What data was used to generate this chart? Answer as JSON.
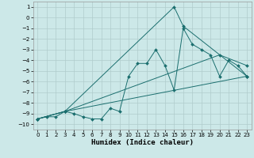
{
  "xlabel": "Humidex (Indice chaleur)",
  "background_color": "#cce8e8",
  "grid_color": "#b0cccc",
  "line_color": "#1a6e6e",
  "xlim": [
    -0.5,
    23.5
  ],
  "ylim": [
    -10.5,
    1.5
  ],
  "xticks": [
    0,
    1,
    2,
    3,
    4,
    5,
    6,
    7,
    8,
    9,
    10,
    11,
    12,
    13,
    14,
    15,
    16,
    17,
    18,
    19,
    20,
    21,
    22,
    23
  ],
  "yticks": [
    1,
    0,
    -1,
    -2,
    -3,
    -4,
    -5,
    -6,
    -7,
    -8,
    -9,
    -10
  ],
  "series": [
    {
      "x": [
        0,
        1,
        2,
        3,
        4,
        5,
        6,
        7,
        8,
        9,
        10,
        11,
        12,
        13,
        14,
        15,
        16,
        17,
        18,
        19,
        20,
        21,
        22,
        23
      ],
      "y": [
        -9.5,
        -9.3,
        -9.3,
        -8.8,
        -9.0,
        -9.3,
        -9.5,
        -9.5,
        -8.5,
        -8.8,
        -5.5,
        -4.3,
        -4.3,
        -3.0,
        -4.5,
        -6.8,
        -1.0,
        -2.5,
        -3.0,
        -3.5,
        -5.5,
        -4.0,
        -4.5,
        -5.5
      ]
    },
    {
      "x": [
        0,
        3,
        15,
        16,
        23
      ],
      "y": [
        -9.5,
        -8.8,
        1.0,
        -0.8,
        -5.5
      ]
    },
    {
      "x": [
        0,
        3,
        20,
        23
      ],
      "y": [
        -9.5,
        -8.8,
        -3.5,
        -4.5
      ]
    },
    {
      "x": [
        0,
        3,
        23
      ],
      "y": [
        -9.5,
        -8.8,
        -5.5
      ]
    }
  ]
}
